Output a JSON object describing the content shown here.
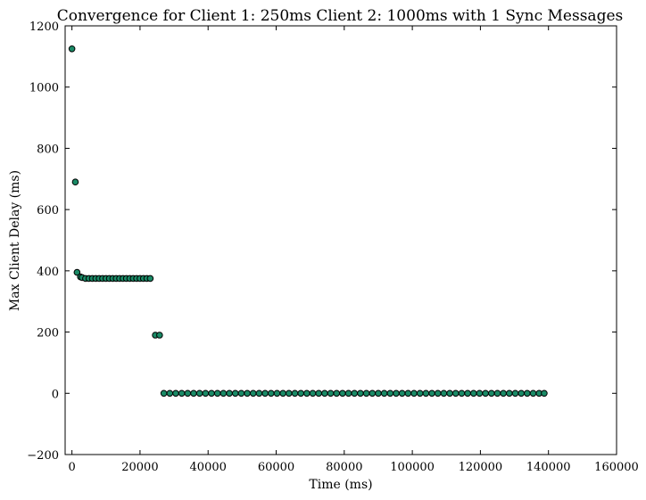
{
  "chart_data": {
    "type": "scatter",
    "title": "Convergence for Client 1: 250ms Client 2: 1000ms with 1 Sync Messages",
    "xlabel": "Time (ms)",
    "ylabel": "Max Client Delay (ms)",
    "xlim": [
      -2000,
      160000
    ],
    "ylim": [
      -200,
      1200
    ],
    "xticks": [
      0,
      20000,
      40000,
      60000,
      80000,
      100000,
      120000,
      140000,
      160000
    ],
    "yticks": [
      -200,
      0,
      200,
      400,
      600,
      800,
      1000,
      1200
    ],
    "xtick_labels": [
      "0",
      "20000",
      "40000",
      "60000",
      "80000",
      "100000",
      "120000",
      "140000",
      "160000"
    ],
    "ytick_labels": [
      "−200",
      "0",
      "200",
      "400",
      "600",
      "800",
      "1000",
      "1200"
    ],
    "grid": false,
    "marker_color": "#1a8a66",
    "marker_edge": "#000000",
    "x": [
      0,
      1000,
      1500,
      2500,
      3000,
      4000,
      5000,
      6000,
      7000,
      8000,
      9000,
      10000,
      11000,
      12000,
      13000,
      14000,
      15000,
      16000,
      17000,
      18000,
      19000,
      20000,
      21000,
      22000,
      23000,
      24500,
      25750,
      27000,
      28750,
      30500,
      32250,
      34000,
      35750,
      37500,
      39250,
      41000,
      42750,
      44500,
      46250,
      48000,
      49750,
      51500,
      53250,
      55000,
      56750,
      58500,
      60250,
      62000,
      63750,
      65500,
      67250,
      69000,
      70750,
      72500,
      74250,
      76000,
      77750,
      79500,
      81250,
      83000,
      84750,
      86500,
      88250,
      90000,
      91750,
      93500,
      95250,
      97000,
      98750,
      100500,
      102250,
      104000,
      105750,
      107500,
      109250,
      111000,
      112750,
      114500,
      116250,
      118000,
      119750,
      121500,
      123250,
      125000,
      126750,
      128500,
      130250,
      132000,
      133750,
      135500,
      137250,
      138750
    ],
    "y": [
      1125,
      690,
      395,
      380,
      378,
      375,
      375,
      375,
      375,
      375,
      375,
      375,
      375,
      375,
      375,
      375,
      375,
      375,
      375,
      375,
      375,
      375,
      375,
      375,
      375,
      190,
      190,
      0,
      0,
      0,
      0,
      0,
      0,
      0,
      0,
      0,
      0,
      0,
      0,
      0,
      0,
      0,
      0,
      0,
      0,
      0,
      0,
      0,
      0,
      0,
      0,
      0,
      0,
      0,
      0,
      0,
      0,
      0,
      0,
      0,
      0,
      0,
      0,
      0,
      0,
      0,
      0,
      0,
      0,
      0,
      0,
      0,
      0,
      0,
      0,
      0,
      0,
      0,
      0,
      0,
      0,
      0,
      0,
      0,
      0,
      0,
      0,
      0,
      0,
      0,
      0,
      0
    ]
  }
}
